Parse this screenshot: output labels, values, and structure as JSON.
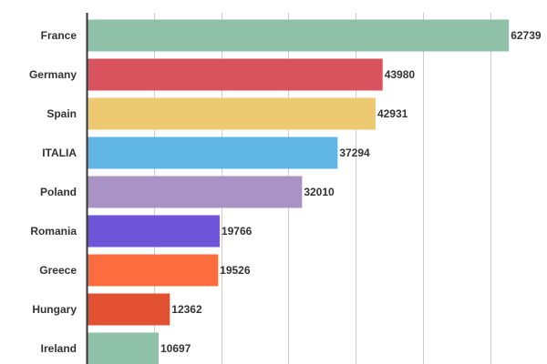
{
  "chart_data": {
    "type": "bar",
    "orientation": "horizontal",
    "title": "",
    "xlabel": "",
    "ylabel": "",
    "xlim": [
      0,
      70000
    ],
    "grid": true,
    "categories": [
      "France",
      "Germany",
      "Spain",
      "ITALIA",
      "Poland",
      "Romania",
      "Greece",
      "Hungary",
      "Ireland"
    ],
    "values": [
      62739,
      43980,
      42931,
      37294,
      32010,
      19766,
      19526,
      12362,
      10697
    ],
    "value_labels": [
      "62739",
      "43980",
      "42931",
      "37294",
      "32010",
      "19766",
      "19526",
      "12362",
      "10697"
    ],
    "colors": [
      "#8fc1a9",
      "#d9535e",
      "#edc971",
      "#5fb5e3",
      "#a993c5",
      "#6c55d8",
      "#fb6d3f",
      "#e25032",
      "#8fc1a9"
    ]
  }
}
